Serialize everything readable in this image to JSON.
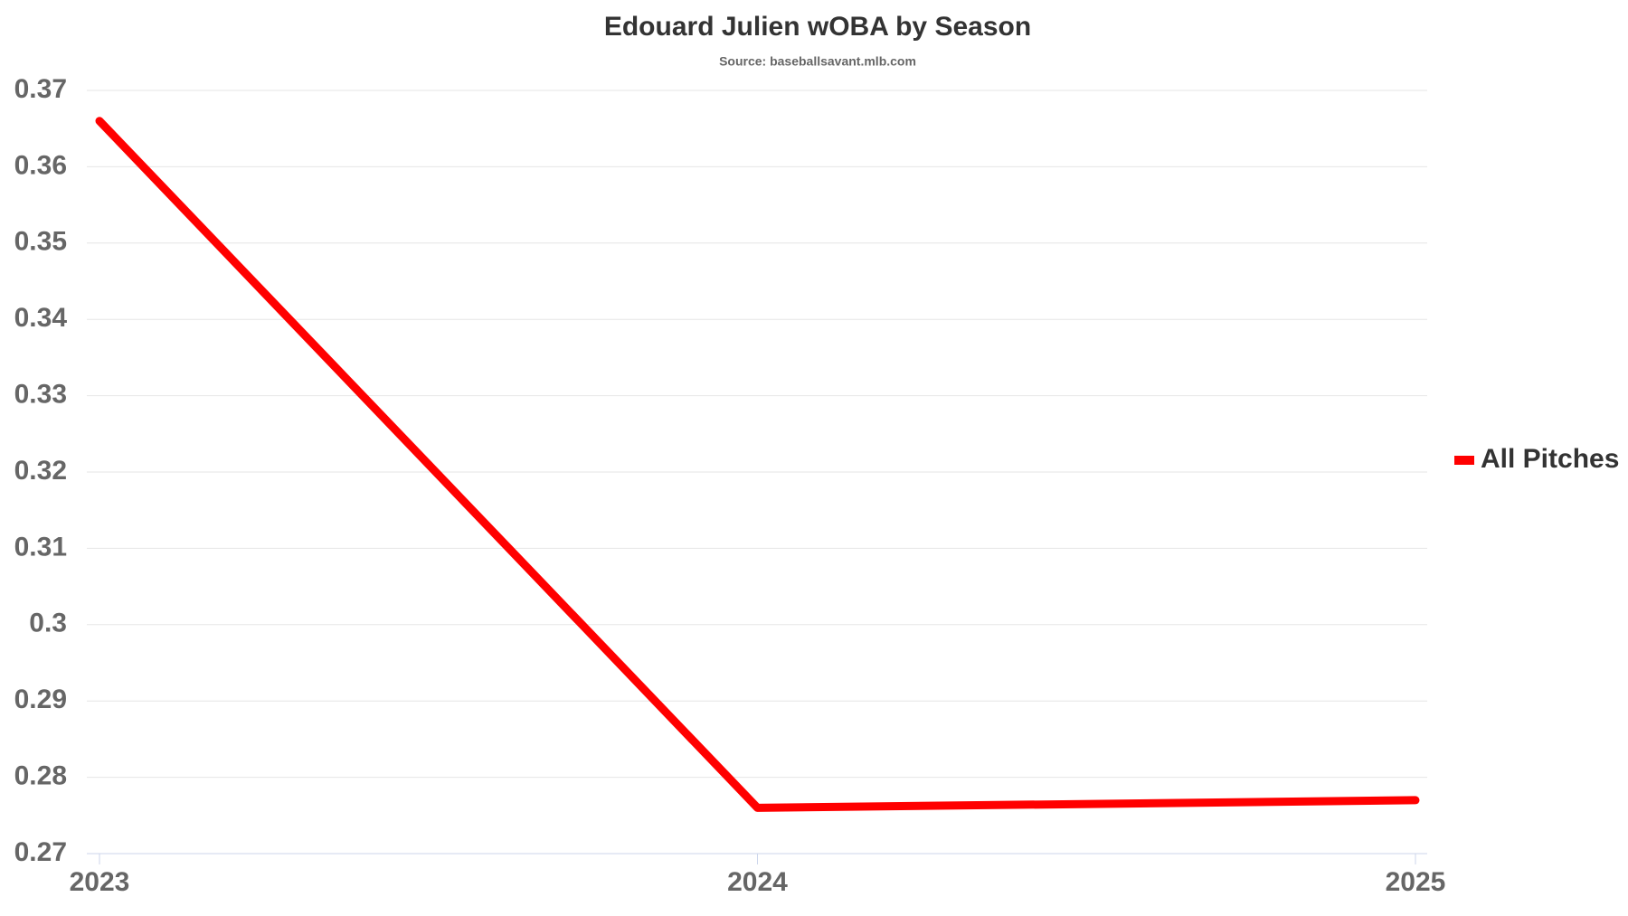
{
  "chart_data": {
    "type": "line",
    "title": "Edouard Julien wOBA by Season",
    "subtitle": "Source: baseballsavant.mlb.com",
    "categories": [
      "2023",
      "2024",
      "2025"
    ],
    "series": [
      {
        "name": "All Pitches",
        "color": "#ff0000",
        "values": [
          0.366,
          0.276,
          0.277
        ]
      }
    ],
    "ylim": [
      0.27,
      0.37
    ],
    "yticks": [
      0.27,
      0.28,
      0.29,
      0.3,
      0.31,
      0.32,
      0.33,
      0.34,
      0.35,
      0.36,
      0.37
    ],
    "grid": true,
    "legend": "right"
  }
}
